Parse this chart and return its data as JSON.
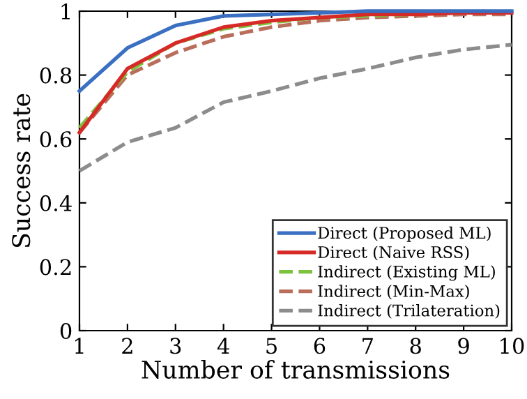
{
  "chart_data": {
    "type": "line",
    "xlabel": "Number of transmissions",
    "ylabel": "Success rate",
    "x": [
      1,
      2,
      3,
      4,
      5,
      6,
      7,
      8,
      9,
      10
    ],
    "series": [
      {
        "name": "Direct (Proposed ML)",
        "color": "#3a6fc1",
        "line_style": "solid",
        "values": [
          0.75,
          0.885,
          0.955,
          0.985,
          0.99,
          0.995,
          1.0,
          1.0,
          1.0,
          1.0
        ]
      },
      {
        "name": "Direct (Naive RSS)",
        "color": "#d62a27",
        "line_style": "solid",
        "values": [
          0.62,
          0.82,
          0.9,
          0.95,
          0.97,
          0.98,
          0.99,
          0.99,
          0.995,
          0.995
        ]
      },
      {
        "name": "Indirect (Existing ML)",
        "color": "#7cc23f",
        "line_style": "dashed",
        "values": [
          0.635,
          0.81,
          0.9,
          0.945,
          0.965,
          0.98,
          0.985,
          0.99,
          0.995,
          0.995
        ]
      },
      {
        "name": "Indirect (Min-Max)",
        "color": "#b96e5b",
        "line_style": "dashed",
        "values": [
          0.62,
          0.8,
          0.87,
          0.92,
          0.95,
          0.97,
          0.98,
          0.985,
          0.99,
          0.99
        ]
      },
      {
        "name": "Indirect (Trilateration)",
        "color": "#8c8c8c",
        "line_style": "dashed",
        "values": [
          0.5,
          0.59,
          0.635,
          0.715,
          0.75,
          0.79,
          0.82,
          0.855,
          0.88,
          0.895
        ]
      }
    ],
    "xlim": [
      1,
      10
    ],
    "xticks": [
      1,
      2,
      3,
      4,
      5,
      6,
      7,
      8,
      9,
      10
    ],
    "ylim": [
      0,
      1
    ],
    "yticks": [
      0,
      0.2,
      0.4,
      0.6,
      0.8,
      1
    ],
    "legend": "bottom right",
    "grid": false,
    "marker": "none"
  }
}
